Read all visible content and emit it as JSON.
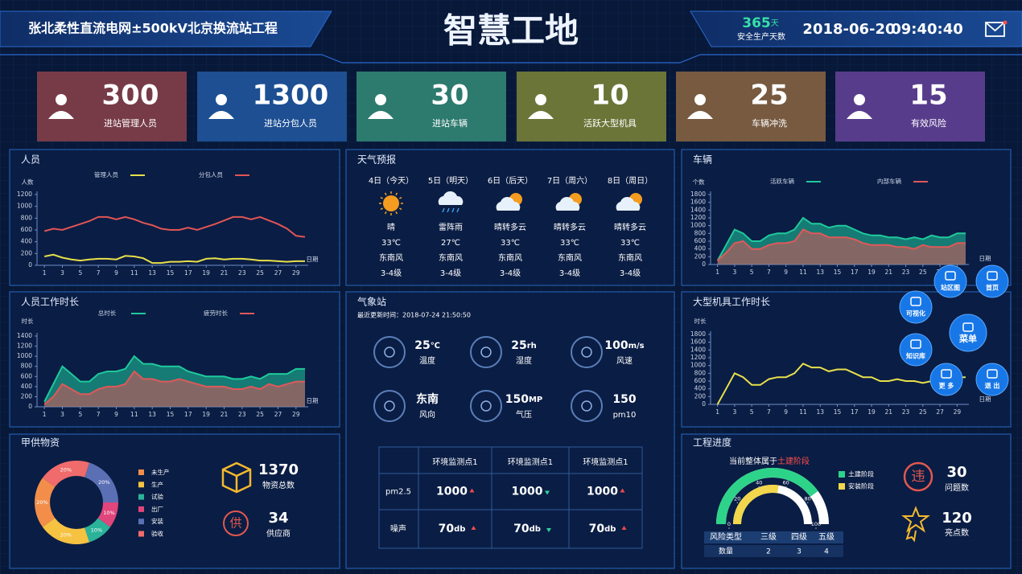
{
  "header": {
    "title": "张北柔性直流电网±500kV北京换流站工程",
    "center_title": "智慧工地",
    "safe_days": 365,
    "safe_days_unit": "天",
    "safe_days_label": "安全生产天数",
    "date": "2018-06-20",
    "time": "09:40:40"
  },
  "kpis": [
    {
      "value": 300,
      "label": "进站管理人员",
      "color": "#773b48"
    },
    {
      "value": 1300,
      "label": "进站分包人员",
      "color": "#1d4f92"
    },
    {
      "value": 30,
      "label": "进站车辆",
      "color": "#2d7a6e"
    },
    {
      "value": 10,
      "label": "活跃大型机具",
      "color": "#6b7538"
    },
    {
      "value": 25,
      "label": "车辆冲洗",
      "color": "#775a40"
    },
    {
      "value": 15,
      "label": "有效风险",
      "color": "#583c8c"
    }
  ],
  "chart_data": [
    {
      "type": "line",
      "title": "人员",
      "y_label": "人数",
      "x_label": "日期",
      "x": [
        1,
        2,
        3,
        4,
        5,
        6,
        7,
        8,
        9,
        10,
        11,
        12,
        13,
        14,
        15,
        16,
        17,
        18,
        19,
        20,
        21,
        22,
        23,
        24,
        25,
        26,
        27,
        28,
        29,
        30
      ],
      "xlim": [
        0,
        30
      ],
      "xticks": [
        1,
        3,
        5,
        7,
        9,
        11,
        13,
        15,
        17,
        19,
        21,
        23,
        25,
        27,
        29
      ],
      "ylim": [
        0,
        1200
      ],
      "yticks": [
        0,
        200,
        400,
        600,
        800,
        1000,
        1200
      ],
      "series": [
        {
          "name": "管理人员",
          "color": "#e8e04a",
          "values": [
            150,
            180,
            130,
            100,
            80,
            100,
            110,
            110,
            100,
            160,
            150,
            120,
            40,
            40,
            60,
            60,
            70,
            60,
            110,
            120,
            100,
            110,
            110,
            100,
            80,
            80,
            70,
            60,
            70,
            70
          ]
        },
        {
          "name": "分包人员",
          "color": "#e05555",
          "values": [
            580,
            620,
            600,
            650,
            700,
            750,
            820,
            820,
            780,
            820,
            780,
            720,
            680,
            620,
            600,
            600,
            640,
            600,
            650,
            700,
            760,
            820,
            820,
            780,
            820,
            760,
            700,
            620,
            500,
            480
          ]
        }
      ]
    },
    {
      "type": "area",
      "title": "车辆",
      "y_label": "个数",
      "x_label": "日期",
      "x": [
        1,
        2,
        3,
        4,
        5,
        6,
        7,
        8,
        9,
        10,
        11,
        12,
        13,
        14,
        15,
        16,
        17,
        18,
        19,
        20,
        21,
        22,
        23,
        24,
        25,
        26,
        27,
        28,
        29,
        30
      ],
      "xlim": [
        0,
        30
      ],
      "xticks": [
        1,
        3,
        5,
        7,
        9,
        11,
        13,
        15,
        17,
        19,
        21,
        23,
        25,
        27,
        29
      ],
      "ylim": [
        0,
        1800
      ],
      "yticks": [
        0,
        200,
        400,
        600,
        800,
        1000,
        1200,
        1400,
        1600,
        1800
      ],
      "series": [
        {
          "name": "活跃车辆",
          "color": "#1fc99c",
          "values": [
            100,
            500,
            900,
            800,
            600,
            600,
            750,
            800,
            800,
            900,
            1200,
            1050,
            1050,
            950,
            1000,
            1000,
            900,
            800,
            750,
            750,
            700,
            700,
            650,
            700,
            650,
            750,
            700,
            700,
            800,
            800
          ]
        },
        {
          "name": "内部车辆",
          "color": "#e0585a",
          "values": [
            100,
            300,
            550,
            600,
            400,
            400,
            500,
            550,
            550,
            600,
            900,
            800,
            800,
            700,
            700,
            700,
            650,
            550,
            500,
            500,
            500,
            450,
            450,
            400,
            500,
            450,
            450,
            450,
            550,
            550
          ]
        }
      ]
    },
    {
      "type": "area",
      "title": "人员工作时长",
      "y_label": "时长",
      "x_label": "日期",
      "x": [
        1,
        2,
        3,
        4,
        5,
        6,
        7,
        8,
        9,
        10,
        11,
        12,
        13,
        14,
        15,
        16,
        17,
        18,
        19,
        20,
        21,
        22,
        23,
        24,
        25,
        26,
        27,
        28,
        29,
        30
      ],
      "xlim": [
        0,
        30
      ],
      "xticks": [
        1,
        3,
        5,
        7,
        9,
        11,
        13,
        15,
        17,
        19,
        21,
        23,
        25,
        27,
        29
      ],
      "ylim": [
        0,
        1400
      ],
      "yticks": [
        0,
        200,
        400,
        600,
        800,
        1000,
        1200,
        1400
      ],
      "series": [
        {
          "name": "总时长",
          "color": "#1fc99c",
          "values": [
            100,
            450,
            800,
            650,
            500,
            500,
            650,
            700,
            700,
            750,
            1000,
            850,
            850,
            800,
            800,
            800,
            700,
            650,
            600,
            600,
            600,
            550,
            550,
            600,
            550,
            650,
            650,
            650,
            750,
            750
          ]
        },
        {
          "name": "疲劳时长",
          "color": "#e0585a",
          "values": [
            50,
            200,
            450,
            350,
            250,
            250,
            350,
            400,
            400,
            450,
            700,
            550,
            550,
            500,
            500,
            550,
            500,
            450,
            400,
            400,
            400,
            350,
            350,
            400,
            350,
            450,
            400,
            450,
            500,
            500
          ]
        }
      ]
    },
    {
      "type": "line",
      "title": "大型机具工作时长",
      "y_label": "时长",
      "x_label": "日期",
      "x": [
        1,
        2,
        3,
        4,
        5,
        6,
        7,
        8,
        9,
        10,
        11,
        12,
        13,
        14,
        15,
        16,
        17,
        18,
        19,
        20,
        21,
        22,
        23,
        24,
        25,
        26,
        27,
        28,
        29,
        30
      ],
      "xlim": [
        0,
        30
      ],
      "xticks": [
        1,
        3,
        5,
        7,
        9,
        11,
        13,
        15,
        17,
        19,
        21,
        23,
        25,
        27,
        29
      ],
      "ylim": [
        0,
        1800
      ],
      "yticks": [
        0,
        200,
        400,
        600,
        800,
        1000,
        1200,
        1400,
        1600,
        1800
      ],
      "series": [
        {
          "color": "#e8e04a",
          "values": [
            0,
            400,
            800,
            700,
            500,
            500,
            650,
            700,
            700,
            800,
            1050,
            950,
            950,
            850,
            900,
            900,
            800,
            700,
            700,
            600,
            600,
            650,
            600,
            600,
            550,
            600,
            600,
            600,
            700,
            700
          ]
        }
      ]
    },
    {
      "type": "pie",
      "title": "甲供物资",
      "categories": [
        "未生产",
        "生产",
        "试验",
        "出厂",
        "安装",
        "验收"
      ],
      "values": [
        20,
        20,
        10,
        10,
        20,
        20
      ],
      "value_labels": [
        "20%",
        "20%",
        "10%",
        "10%",
        "20%",
        "20%"
      ],
      "colors": [
        "#f28e4a",
        "#f5c242",
        "#2bb39a",
        "#e0457b",
        "#5b6fb5",
        "#f06b6b"
      ]
    },
    {
      "type": "gauge",
      "title": "工程进度",
      "ylim": [
        0,
        100
      ],
      "yticks": [
        0,
        20,
        40,
        60,
        80,
        100
      ],
      "series": [
        {
          "name": "土建阶段",
          "color": "#2ed38a",
          "values": [
            80
          ]
        },
        {
          "name": "安装阶段",
          "color": "#f2d64b",
          "values": [
            55
          ]
        }
      ]
    }
  ],
  "weather": {
    "title": "天气预报",
    "days": [
      {
        "day": "4日（今天）",
        "icon": "sun",
        "condition": "晴",
        "temp": "33℃",
        "wind": "东南风",
        "level": "3-4级"
      },
      {
        "day": "5日（明天）",
        "icon": "storm",
        "condition": "雷阵雨",
        "temp": "27℃",
        "wind": "东南风",
        "level": "3-4级"
      },
      {
        "day": "6日（后天）",
        "icon": "cloud-sun",
        "condition": "晴转多云",
        "temp": "33℃",
        "wind": "东南风",
        "level": "3-4级"
      },
      {
        "day": "7日（周六）",
        "icon": "cloud-sun",
        "condition": "晴转多云",
        "temp": "33℃",
        "wind": "东南风",
        "level": "3-4级"
      },
      {
        "day": "8日（周日）",
        "icon": "cloud-sun",
        "condition": "晴转多云",
        "temp": "33℃",
        "wind": "东南风",
        "level": "3-4级"
      }
    ]
  },
  "station": {
    "title": "气象站",
    "updated": "最近更新时间：2018-07-24  21:50:50",
    "items": [
      {
        "value": 25,
        "unit": "℃",
        "label": "温度"
      },
      {
        "value": 25,
        "unit": "rh",
        "label": "湿度"
      },
      {
        "value": 100,
        "unit": "m/s",
        "label": "风速"
      },
      {
        "value": "东南",
        "label": "风向"
      },
      {
        "value": 150,
        "unit": "MP",
        "label": "气压"
      },
      {
        "value": 150,
        "label": "pm10"
      }
    ]
  },
  "monitor": {
    "columns": [
      "环境监测点1",
      "环境监测点1",
      "环境监测点1"
    ],
    "rows": [
      {
        "name": "pm2.5",
        "cells": [
          {
            "value": 1000,
            "trend": "up"
          },
          {
            "value": 1000,
            "trend": "down"
          },
          {
            "value": 1000,
            "trend": "up"
          }
        ]
      },
      {
        "name": "噪声",
        "unit": "db",
        "cells": [
          {
            "value": 70,
            "trend": "up"
          },
          {
            "value": 70,
            "trend": "down"
          },
          {
            "value": 70,
            "trend": "up"
          }
        ]
      }
    ]
  },
  "materials": {
    "total": 1370,
    "total_label": "物资总数",
    "suppliers": 34,
    "suppliers_label": "供应商",
    "suppliers_icon_text": "供"
  },
  "progress": {
    "stage_prefix": "当前整体属于",
    "stage": "土建阶段",
    "issues": 30,
    "issues_label": "问题数",
    "issues_icon_text": "违",
    "highlights": 120,
    "highlights_label": "亮点数",
    "risk": {
      "header": [
        "风险类型",
        "三级",
        "四级",
        "五级"
      ],
      "row_label": "数量",
      "counts": [
        2,
        3,
        4
      ]
    }
  },
  "menu": [
    {
      "label": "站区图"
    },
    {
      "label": "首页"
    },
    {
      "label": "可视化"
    },
    {
      "label": "菜单"
    },
    {
      "label": "知识库"
    },
    {
      "label": "更 多"
    },
    {
      "label": "退 出"
    }
  ]
}
